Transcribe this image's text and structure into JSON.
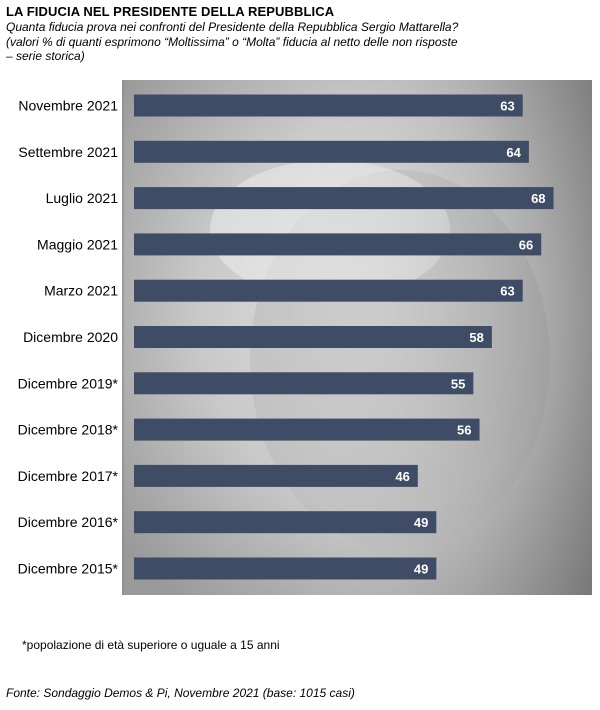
{
  "title": "LA FIDUCIA NEL PRESIDENTE DELLA REPUBBLICA",
  "subtitle_lines": [
    "Quanta fiducia prova nei confronti del Presidente della Repubblica Sergio Mattarella?",
    "(valori % di quanti esprimono “Moltissima” o “Molta” fiducia al netto delle non risposte",
    "– serie storica)"
  ],
  "footnote": "*popolazione di età superiore o uguale a 15 anni",
  "source": "Fonte: Sondaggio Demos & Pi, Novembre 2021 (base: 1015 casi)",
  "colors": {
    "bar": "#3f4c65",
    "label_text": "#ffffff",
    "background_photo": "#cfcfcf"
  },
  "chart_data": {
    "type": "bar",
    "orientation": "horizontal",
    "categories": [
      "Novembre 2021",
      "Settembre 2021",
      "Luglio 2021",
      "Maggio 2021",
      "Marzo 2021",
      "Dicembre 2020",
      "Dicembre 2019*",
      "Dicembre 2018*",
      "Dicembre 2017*",
      "Dicembre 2016*",
      "Dicembre 2015*"
    ],
    "values": [
      63,
      64,
      68,
      66,
      63,
      58,
      55,
      56,
      46,
      49,
      49
    ],
    "title": "LA FIDUCIA NEL PRESIDENTE DELLA REPUBBLICA",
    "xlabel": "",
    "ylabel": "",
    "xlim": [
      0,
      69
    ],
    "grid": false,
    "legend": "none",
    "data_labels": true
  }
}
